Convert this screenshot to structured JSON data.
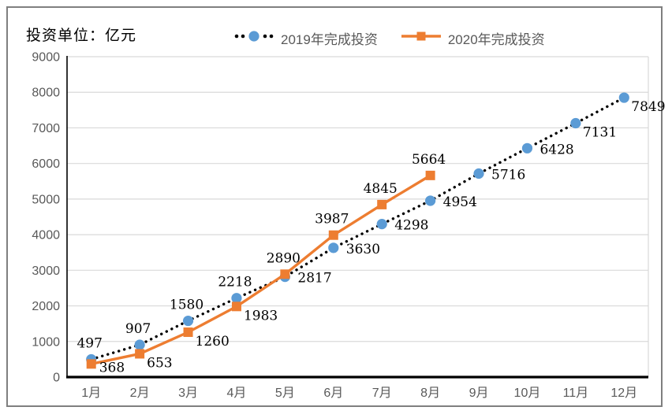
{
  "title": "投资单位：亿元",
  "colors": {
    "frame_border": "#7f7f7f",
    "grid": "#d9d9d9",
    "plot_border": "#d9d9d9",
    "axis_line": "#000000",
    "axis_text": "#595959",
    "data_label_text": "#000000",
    "series_2019_marker": "#5b9bd5",
    "series_2019_line": "#000000",
    "series_2020": "#ed7d31"
  },
  "chart_data": {
    "type": "line",
    "title": "投资单位：亿元",
    "categories": [
      "1月",
      "2月",
      "3月",
      "4月",
      "5月",
      "6月",
      "7月",
      "8月",
      "9月",
      "10月",
      "11月",
      "12月"
    ],
    "series": [
      {
        "name": "2019年完成投资",
        "marker": "circle",
        "marker_color": "#5b9bd5",
        "line_color": "#000000",
        "line_style": "dotted",
        "values": [
          497,
          907,
          1580,
          2218,
          2817,
          3630,
          4298,
          4954,
          5716,
          6428,
          7131,
          7849
        ],
        "label_placement": [
          "above",
          "above",
          "above",
          "above",
          "right",
          "right",
          "right",
          "right",
          "right",
          "right",
          "below",
          "below"
        ]
      },
      {
        "name": "2020年完成投资",
        "marker": "square",
        "marker_color": "#ed7d31",
        "line_color": "#ed7d31",
        "line_style": "solid",
        "values": [
          368,
          653,
          1260,
          1983,
          2890,
          3987,
          4845,
          5664
        ],
        "label_placement": [
          "belowS",
          "below",
          "below",
          "below",
          "above",
          "above",
          "above",
          "above"
        ]
      }
    ],
    "ylim": [
      0,
      9000
    ],
    "ytick_step": 1000,
    "yticks": [
      0,
      1000,
      2000,
      3000,
      4000,
      5000,
      6000,
      7000,
      8000,
      9000
    ],
    "grid": true,
    "legend_position": "top-center",
    "data_labels": true
  }
}
